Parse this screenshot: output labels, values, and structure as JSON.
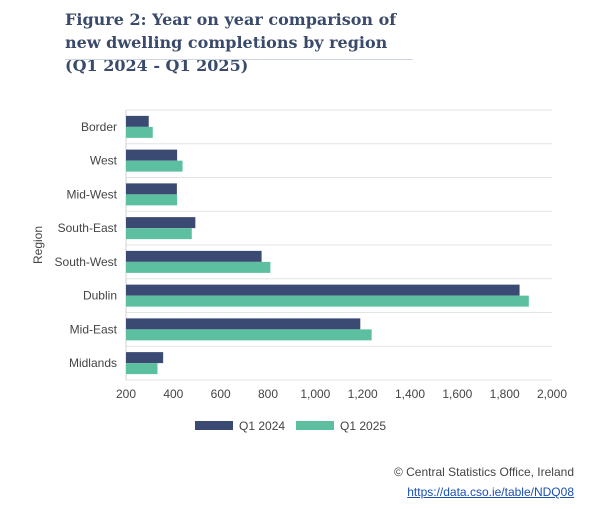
{
  "title": "Figure 2: Year on year comparison of new dwelling completions by region (Q1 2024 - Q1 2025)",
  "chart_data": {
    "type": "bar",
    "orientation": "horizontal",
    "title": "Figure 2: Year on year comparison of new dwelling completions by region (Q1 2024 - Q1 2025)",
    "xlabel": "",
    "ylabel": "Region",
    "categories": [
      "Border",
      "West",
      "Mid-West",
      "South-East",
      "South-West",
      "Dublin",
      "Mid-East",
      "Midlands"
    ],
    "series": [
      {
        "name": "Q1 2024",
        "color": "#3b4a73",
        "values": [
          296,
          416,
          415,
          493,
          773,
          1863,
          1190,
          357
        ]
      },
      {
        "name": "Q1 2025",
        "color": "#5cc0a0",
        "values": [
          313,
          439,
          416,
          478,
          810,
          1902,
          1238,
          333
        ]
      }
    ],
    "xlim": [
      200,
      2000
    ],
    "xticks": [
      200,
      400,
      600,
      800,
      1000,
      1200,
      1400,
      1600,
      1800,
      2000
    ],
    "xtick_labels": [
      "200",
      "400",
      "600",
      "800",
      "1,000",
      "1,200",
      "1,400",
      "1,600",
      "1,800",
      "2,000"
    ],
    "grid": true,
    "legend": "bottom"
  },
  "footer": {
    "copyright": "© Central Statistics Office, Ireland",
    "link": "https://data.cso.ie/table/NDQ08"
  }
}
